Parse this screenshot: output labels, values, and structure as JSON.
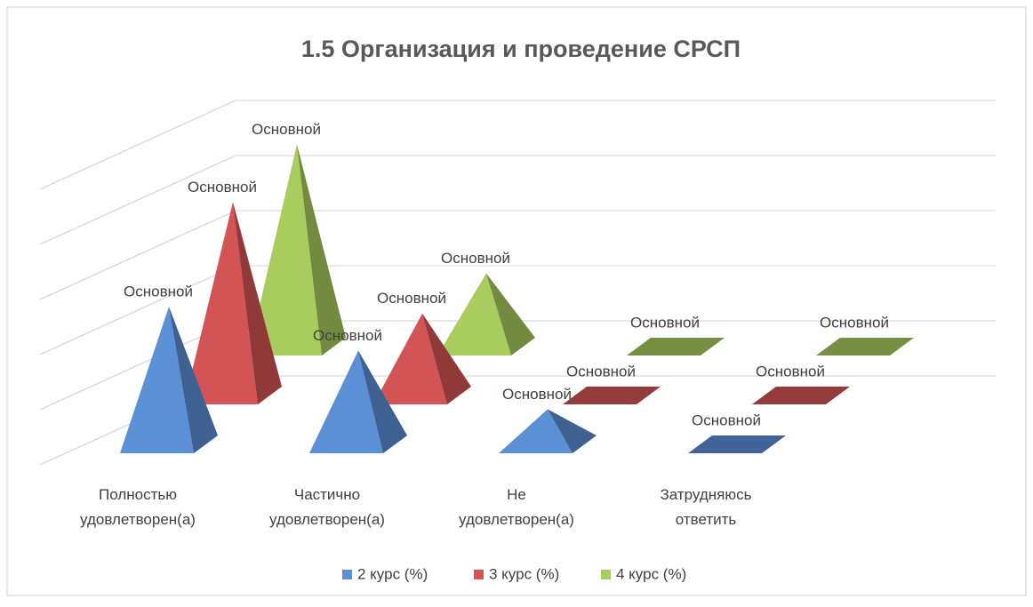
{
  "chart_data": {
    "type": "pyramid3d",
    "title": "1.5 Организация  и проведение СРСП",
    "categories": [
      "Полностью удовлетворен(а)",
      "Частично удовлетворен(а)",
      "Не удовлетворен(а)",
      "Затрудняюсь ответить"
    ],
    "series": [
      {
        "name": "2 курс (%)",
        "color": "#5b8fd6",
        "values": [
          50,
          35,
          15,
          0
        ],
        "value_labels": [
          "Основной",
          "Основной",
          "Основной",
          "Основной"
        ]
      },
      {
        "name": "3 курс (%)",
        "color": "#d35454",
        "values": [
          69,
          31,
          0,
          0
        ],
        "value_labels": [
          "Основной",
          "Основной",
          "Основной",
          "Основной"
        ]
      },
      {
        "name": "4 курс (%)",
        "color": "#a9cc5f",
        "values": [
          72,
          28,
          0,
          0
        ],
        "value_labels": [
          "Основной",
          "Основной",
          "Основной",
          "Основной"
        ]
      }
    ],
    "ylim": [
      0,
      100
    ],
    "yticks": [
      0,
      20,
      40,
      60,
      80,
      100
    ],
    "grid": true,
    "legend": "bottom"
  }
}
